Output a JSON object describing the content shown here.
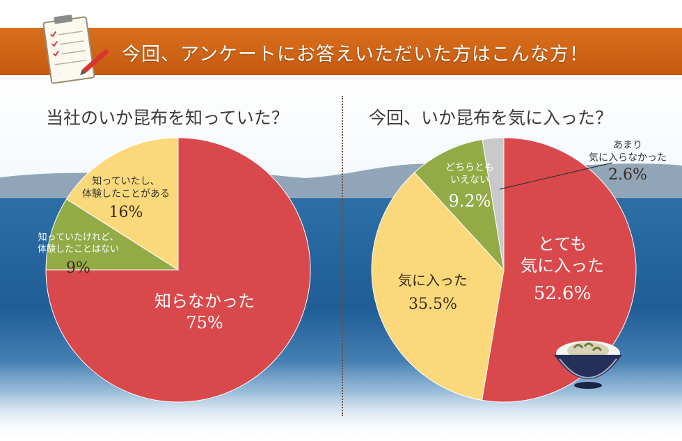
{
  "banner": {
    "title": "今回、アンケートにお答えいただいた方はこんな方！"
  },
  "colors": {
    "red": "#d9494c",
    "yellow": "#fbd87a",
    "green": "#93ab46",
    "gray": "#c9c9c9",
    "orange": "#cf6516"
  },
  "chart_data": [
    {
      "type": "pie",
      "title": "当社のいか昆布を知っていた？",
      "slices": [
        {
          "label": "知らなかった",
          "value": 75,
          "display": "75%"
        },
        {
          "label": "知っていたけれど、体験したことはない",
          "value": 9,
          "display": "9%"
        },
        {
          "label": "知っていたし、体験したことがある",
          "value": 16,
          "display": "16%"
        }
      ]
    },
    {
      "type": "pie",
      "title": "今回、いか昆布を気に入った？",
      "slices": [
        {
          "label": "とても気に入った",
          "value": 52.6,
          "display": "52.6%"
        },
        {
          "label": "気に入った",
          "value": 35.5,
          "display": "35.5%"
        },
        {
          "label": "どちらともいえない",
          "value": 9.2,
          "display": "9.2%"
        },
        {
          "label": "あまり気に入らなかった",
          "value": 2.6,
          "display": "2.6%"
        }
      ]
    }
  ],
  "labels": {
    "c1_s0_l1": "知らなかった",
    "c1_s1_l1": "知っていたけれど、",
    "c1_s1_l2": "体験したことはない",
    "c1_s2_l1": "知っていたし、",
    "c1_s2_l2": "体験したことがある",
    "c2_s0_l1": "とても",
    "c2_s0_l2": "気に入った",
    "c2_s1_l1": "気に入った",
    "c2_s2_l1": "どちらとも",
    "c2_s2_l2": "いえない",
    "c2_s3_l1": "あまり",
    "c2_s3_l2": "気に入らなかった"
  }
}
